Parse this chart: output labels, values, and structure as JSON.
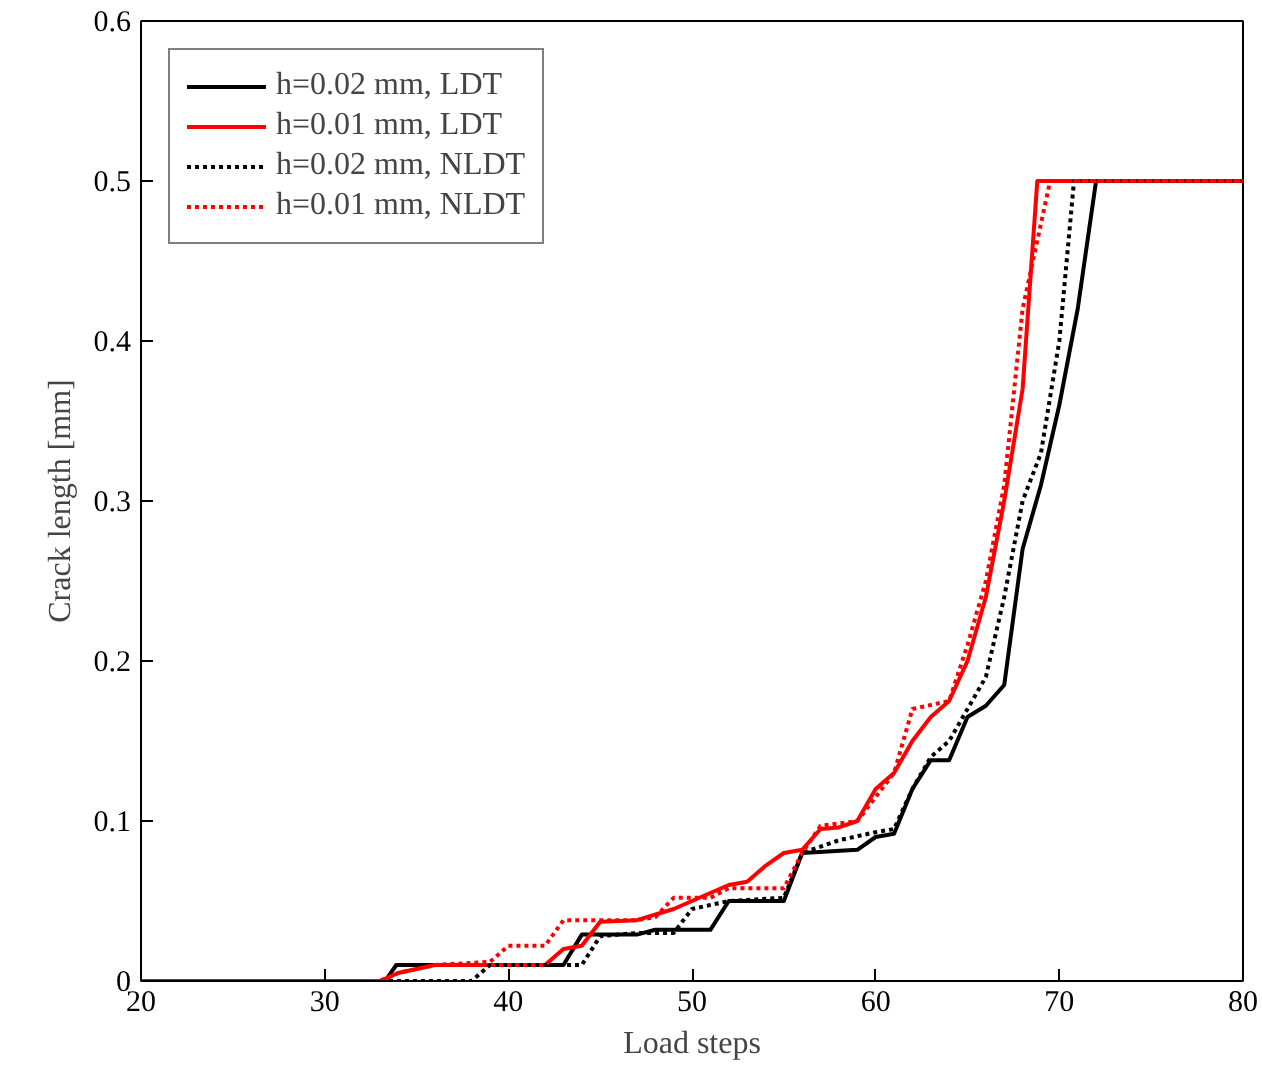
{
  "chart_data": {
    "type": "line",
    "xlabel": "Load steps",
    "ylabel": "Crack length [mm]",
    "xlim": [
      20,
      80
    ],
    "ylim": [
      0,
      0.6
    ],
    "xticks": [
      20,
      30,
      40,
      50,
      60,
      70,
      80
    ],
    "yticks": [
      0,
      0.1,
      0.2,
      0.3,
      0.4,
      0.5,
      0.6
    ],
    "grid": false,
    "legend": "top left",
    "series": [
      {
        "name": "h=0.02 mm, LDT",
        "color": "#000000",
        "line_style": "solid",
        "x": [
          20,
          33.3,
          33.9,
          43,
          44,
          47,
          48,
          51,
          52,
          55,
          56,
          59,
          60,
          61,
          62,
          63,
          64,
          65,
          66,
          67,
          68,
          69,
          70,
          71,
          72,
          80
        ],
        "values": [
          0,
          0,
          0.01,
          0.01,
          0.029,
          0.029,
          0.032,
          0.032,
          0.05,
          0.05,
          0.08,
          0.082,
          0.09,
          0.092,
          0.12,
          0.138,
          0.138,
          0.165,
          0.172,
          0.185,
          0.27,
          0.31,
          0.36,
          0.42,
          0.5,
          0.5
        ]
      },
      {
        "name": "h=0.01 mm, LDT",
        "color": "#ff0000",
        "line_style": "solid",
        "x": [
          20,
          33,
          34,
          36,
          42,
          43,
          44,
          45,
          47,
          49,
          50,
          52,
          53,
          54,
          55,
          56,
          57,
          58,
          59,
          60,
          61,
          62,
          63,
          64,
          65,
          66,
          67,
          68,
          68.8,
          80
        ],
        "values": [
          0,
          0,
          0.005,
          0.01,
          0.01,
          0.02,
          0.022,
          0.037,
          0.038,
          0.045,
          0.05,
          0.06,
          0.062,
          0.072,
          0.08,
          0.082,
          0.095,
          0.096,
          0.1,
          0.12,
          0.13,
          0.15,
          0.165,
          0.175,
          0.2,
          0.24,
          0.3,
          0.37,
          0.5,
          0.5
        ]
      },
      {
        "name": "h=0.02 mm, NLDT",
        "color": "#000000",
        "line_style": "dotted",
        "x": [
          20,
          38,
          39,
          44,
          45,
          47,
          49,
          50,
          52,
          55,
          56,
          58,
          60,
          61,
          62,
          63,
          64,
          65,
          66,
          67,
          68,
          69,
          70,
          70.8,
          80
        ],
        "values": [
          0,
          0,
          0.01,
          0.01,
          0.028,
          0.03,
          0.03,
          0.045,
          0.05,
          0.052,
          0.08,
          0.088,
          0.093,
          0.095,
          0.12,
          0.14,
          0.15,
          0.17,
          0.19,
          0.24,
          0.3,
          0.33,
          0.4,
          0.5,
          0.5
        ]
      },
      {
        "name": "h=0.01 mm, NLDT",
        "color": "#ff0000",
        "line_style": "dotted",
        "x": [
          20,
          33,
          34,
          36,
          39,
          40,
          42,
          43,
          47,
          48,
          49,
          51,
          52,
          55,
          56,
          57,
          59,
          61,
          62,
          64,
          65,
          66,
          67,
          68,
          69.5,
          80
        ],
        "values": [
          0,
          0,
          0.005,
          0.01,
          0.012,
          0.022,
          0.022,
          0.038,
          0.038,
          0.04,
          0.052,
          0.052,
          0.058,
          0.058,
          0.08,
          0.097,
          0.1,
          0.13,
          0.17,
          0.175,
          0.21,
          0.25,
          0.31,
          0.42,
          0.5,
          0.5
        ]
      }
    ]
  }
}
